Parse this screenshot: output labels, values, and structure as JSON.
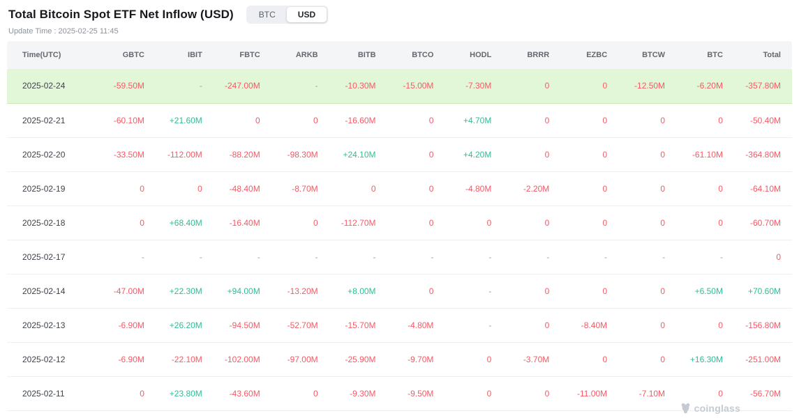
{
  "header": {
    "title": "Total Bitcoin Spot ETF Net Inflow (USD)",
    "toggle": {
      "btc_label": "BTC",
      "usd_label": "USD",
      "selected": "USD"
    },
    "update_time": "Update Time : 2025-02-25 11:45"
  },
  "table": {
    "columns": [
      "Time(UTC)",
      "GBTC",
      "IBIT",
      "FBTC",
      "ARKB",
      "BITB",
      "BTCO",
      "HODL",
      "BRRR",
      "EZBC",
      "BTCW",
      "BTC",
      "Total"
    ],
    "rows": [
      {
        "date": "2025-02-24",
        "highlighted": true,
        "values": [
          "-59.50M",
          "-",
          "-247.00M",
          "-",
          "-10.30M",
          "-15.00M",
          "-7.30M",
          "0",
          "0",
          "-12.50M",
          "-6.20M",
          "-357.80M"
        ]
      },
      {
        "date": "2025-02-21",
        "highlighted": false,
        "values": [
          "-60.10M",
          "+21.60M",
          "0",
          "0",
          "-16.60M",
          "0",
          "+4.70M",
          "0",
          "0",
          "0",
          "0",
          "-50.40M"
        ]
      },
      {
        "date": "2025-02-20",
        "highlighted": false,
        "values": [
          "-33.50M",
          "-112.00M",
          "-88.20M",
          "-98.30M",
          "+24.10M",
          "0",
          "+4.20M",
          "0",
          "0",
          "0",
          "-61.10M",
          "-364.80M"
        ]
      },
      {
        "date": "2025-02-19",
        "highlighted": false,
        "values": [
          "0",
          "0",
          "-48.40M",
          "-8.70M",
          "0",
          "0",
          "-4.80M",
          "-2.20M",
          "0",
          "0",
          "0",
          "-64.10M"
        ]
      },
      {
        "date": "2025-02-18",
        "highlighted": false,
        "values": [
          "0",
          "+68.40M",
          "-16.40M",
          "0",
          "-112.70M",
          "0",
          "0",
          "0",
          "0",
          "0",
          "0",
          "-60.70M"
        ]
      },
      {
        "date": "2025-02-17",
        "highlighted": false,
        "values": [
          "-",
          "-",
          "-",
          "-",
          "-",
          "-",
          "-",
          "-",
          "-",
          "-",
          "-",
          "0"
        ]
      },
      {
        "date": "2025-02-14",
        "highlighted": false,
        "values": [
          "-47.00M",
          "+22.30M",
          "+94.00M",
          "-13.20M",
          "+8.00M",
          "0",
          "-",
          "0",
          "0",
          "0",
          "+6.50M",
          "+70.60M"
        ]
      },
      {
        "date": "2025-02-13",
        "highlighted": false,
        "values": [
          "-6.90M",
          "+26.20M",
          "-94.50M",
          "-52.70M",
          "-15.70M",
          "-4.80M",
          "-",
          "0",
          "-8.40M",
          "0",
          "0",
          "-156.80M"
        ]
      },
      {
        "date": "2025-02-12",
        "highlighted": false,
        "values": [
          "-6.90M",
          "-22.10M",
          "-102.00M",
          "-97.00M",
          "-25.90M",
          "-9.70M",
          "0",
          "-3.70M",
          "0",
          "0",
          "+16.30M",
          "-251.00M"
        ]
      },
      {
        "date": "2025-02-11",
        "highlighted": false,
        "values": [
          "0",
          "+23.80M",
          "-43.60M",
          "0",
          "-9.30M",
          "-9.50M",
          "0",
          "0",
          "-11.00M",
          "-7.10M",
          "0",
          "-56.70M"
        ]
      }
    ]
  },
  "watermark": {
    "label": "coinglass"
  },
  "colors": {
    "positive": "#2ebd96",
    "negative": "#f55964",
    "highlight": "#e2f7d8",
    "header_bg": "#f4f5f7"
  }
}
